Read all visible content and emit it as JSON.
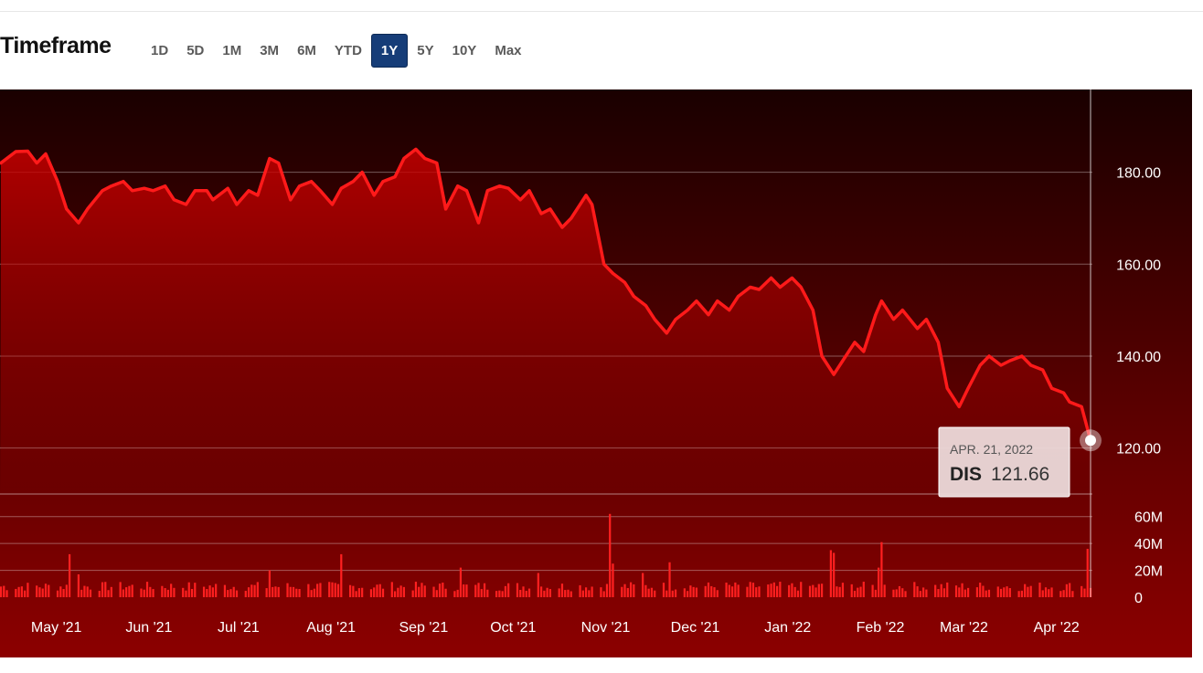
{
  "timeframe": {
    "title": "Timeframe",
    "buttons": [
      "1D",
      "5D",
      "1M",
      "3M",
      "6M",
      "YTD",
      "1Y",
      "5Y",
      "10Y",
      "Max"
    ],
    "active": "1Y"
  },
  "tooltip": {
    "date": "APR. 21, 2022",
    "symbol": "DIS",
    "price": "121.66"
  },
  "colors": {
    "line": "#ff1a1a",
    "bg_top": "#1a0000",
    "bg_bottom": "#8c0000",
    "area_top": "#c80000",
    "volume_bar": "#ff2020",
    "active_button": "#163d78"
  },
  "chart_data": {
    "type": "line",
    "price_axis": {
      "ticks": [
        "180.00",
        "160.00",
        "140.00",
        "120.00"
      ],
      "tick_values": [
        180,
        160,
        140,
        120
      ],
      "range": [
        110,
        198
      ]
    },
    "volume_axis": {
      "ticks": [
        "60M",
        "40M",
        "20M",
        "0"
      ],
      "tick_values": [
        60,
        40,
        20,
        0
      ],
      "range": [
        0,
        70
      ]
    },
    "x_ticks": [
      "May '21",
      "Jun '21",
      "Jul '21",
      "Aug '21",
      "Sep '21",
      "Oct '21",
      "Nov '21",
      "Dec '21",
      "Jan '22",
      "Feb '22",
      "Mar '22",
      "Apr '22"
    ],
    "x_tick_dates": [
      "2021-05-01",
      "2021-06-01",
      "2021-07-01",
      "2021-08-01",
      "2021-09-01",
      "2021-10-01",
      "2021-11-01",
      "2021-12-01",
      "2022-01-01",
      "2022-02-01",
      "2022-03-01",
      "2022-04-01"
    ],
    "x_range": [
      "2021-04-21",
      "2022-04-21"
    ],
    "series": [
      {
        "values": [
          [
            "2021-04-21",
            182
          ],
          [
            "2021-04-26",
            184.5
          ],
          [
            "2021-04-30",
            184.6
          ],
          [
            "2021-05-03",
            182
          ],
          [
            "2021-05-06",
            184
          ],
          [
            "2021-05-10",
            178
          ],
          [
            "2021-05-13",
            172
          ],
          [
            "2021-05-17",
            169
          ],
          [
            "2021-05-20",
            172
          ],
          [
            "2021-05-25",
            176
          ],
          [
            "2021-05-28",
            177
          ],
          [
            "2021-06-01",
            178
          ],
          [
            "2021-06-04",
            176
          ],
          [
            "2021-06-08",
            176.5
          ],
          [
            "2021-06-11",
            176
          ],
          [
            "2021-06-15",
            177
          ],
          [
            "2021-06-18",
            174
          ],
          [
            "2021-06-22",
            173
          ],
          [
            "2021-06-25",
            176
          ],
          [
            "2021-06-29",
            176
          ],
          [
            "2021-07-01",
            174
          ],
          [
            "2021-07-06",
            176.5
          ],
          [
            "2021-07-09",
            173
          ],
          [
            "2021-07-13",
            176
          ],
          [
            "2021-07-16",
            175
          ],
          [
            "2021-07-20",
            183
          ],
          [
            "2021-07-23",
            182
          ],
          [
            "2021-07-27",
            174
          ],
          [
            "2021-07-30",
            177
          ],
          [
            "2021-08-03",
            178
          ],
          [
            "2021-08-06",
            176
          ],
          [
            "2021-08-10",
            173
          ],
          [
            "2021-08-13",
            176.5
          ],
          [
            "2021-08-17",
            178
          ],
          [
            "2021-08-20",
            180
          ],
          [
            "2021-08-24",
            175
          ],
          [
            "2021-08-27",
            178
          ],
          [
            "2021-08-31",
            179
          ],
          [
            "2021-09-03",
            183
          ],
          [
            "2021-09-07",
            185
          ],
          [
            "2021-09-10",
            183
          ],
          [
            "2021-09-14",
            182
          ],
          [
            "2021-09-17",
            172
          ],
          [
            "2021-09-21",
            177
          ],
          [
            "2021-09-24",
            176
          ],
          [
            "2021-09-28",
            169
          ],
          [
            "2021-10-01",
            176
          ],
          [
            "2021-10-05",
            177
          ],
          [
            "2021-10-08",
            176.5
          ],
          [
            "2021-10-12",
            174
          ],
          [
            "2021-10-15",
            176
          ],
          [
            "2021-10-19",
            171
          ],
          [
            "2021-10-22",
            172
          ],
          [
            "2021-10-26",
            168
          ],
          [
            "2021-10-29",
            170
          ],
          [
            "2021-11-03",
            175
          ],
          [
            "2021-11-05",
            173
          ],
          [
            "2021-11-09",
            160
          ],
          [
            "2021-11-12",
            158
          ],
          [
            "2021-11-16",
            156
          ],
          [
            "2021-11-19",
            153
          ],
          [
            "2021-11-23",
            151
          ],
          [
            "2021-11-26",
            148
          ],
          [
            "2021-11-30",
            145
          ],
          [
            "2021-12-03",
            148
          ],
          [
            "2021-12-07",
            150
          ],
          [
            "2021-12-10",
            152
          ],
          [
            "2021-12-14",
            149
          ],
          [
            "2021-12-17",
            152
          ],
          [
            "2021-12-21",
            150
          ],
          [
            "2021-12-24",
            153
          ],
          [
            "2021-12-28",
            155
          ],
          [
            "2021-12-31",
            154.5
          ],
          [
            "2022-01-04",
            157
          ],
          [
            "2022-01-07",
            155
          ],
          [
            "2022-01-11",
            157
          ],
          [
            "2022-01-14",
            155
          ],
          [
            "2022-01-18",
            150
          ],
          [
            "2022-01-21",
            140
          ],
          [
            "2022-01-25",
            136
          ],
          [
            "2022-01-28",
            139
          ],
          [
            "2022-02-01",
            143
          ],
          [
            "2022-02-04",
            141
          ],
          [
            "2022-02-08",
            149
          ],
          [
            "2022-02-10",
            152
          ],
          [
            "2022-02-14",
            148
          ],
          [
            "2022-02-17",
            150
          ],
          [
            "2022-02-22",
            146
          ],
          [
            "2022-02-25",
            148
          ],
          [
            "2022-03-01",
            143
          ],
          [
            "2022-03-04",
            133
          ],
          [
            "2022-03-08",
            129
          ],
          [
            "2022-03-11",
            133
          ],
          [
            "2022-03-15",
            138
          ],
          [
            "2022-03-18",
            140
          ],
          [
            "2022-03-22",
            138
          ],
          [
            "2022-03-25",
            139
          ],
          [
            "2022-03-29",
            140
          ],
          [
            "2022-04-01",
            138
          ],
          [
            "2022-04-05",
            137
          ],
          [
            "2022-04-08",
            133
          ],
          [
            "2022-04-12",
            132
          ],
          [
            "2022-04-14",
            130
          ],
          [
            "2022-04-18",
            129
          ],
          [
            "2022-04-21",
            121.66
          ]
        ]
      }
    ],
    "volume": {
      "unit": "M",
      "typical": 8,
      "spikes": [
        [
          "2021-05-14",
          32
        ],
        [
          "2021-08-13",
          32
        ],
        [
          "2021-09-22",
          22
        ],
        [
          "2021-11-11",
          62
        ],
        [
          "2021-11-12",
          25
        ],
        [
          "2022-02-10",
          41
        ],
        [
          "2022-04-20",
          36
        ],
        [
          "2022-01-24",
          35
        ],
        [
          "2022-01-25",
          33
        ],
        [
          "2021-07-20",
          20
        ],
        [
          "2021-10-18",
          18
        ],
        [
          "2021-12-01",
          26
        ],
        [
          "2022-02-09",
          22
        ],
        [
          "2021-05-17",
          17
        ],
        [
          "2021-11-22",
          18
        ]
      ]
    },
    "tooltip_point": {
      "x": "2022-04-21",
      "y": 121.66
    }
  }
}
